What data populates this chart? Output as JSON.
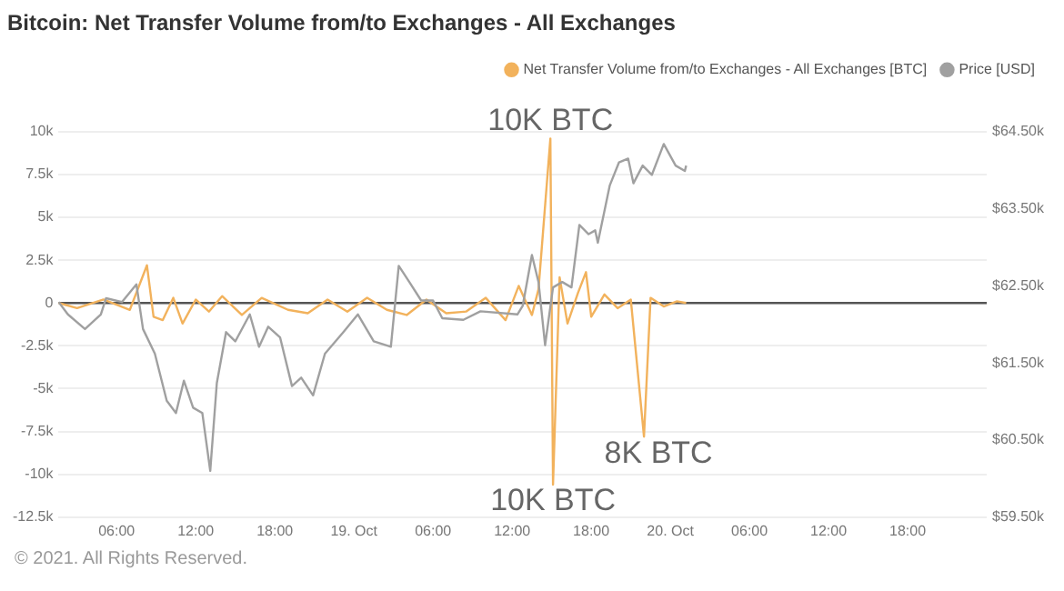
{
  "chart_data": {
    "type": "line",
    "title": "Bitcoin: Net Transfer Volume from/to Exchanges - All Exchanges",
    "xlim": [
      "--10-18T01:36",
      "--10-21T00:00"
    ],
    "xticks": [
      {
        "value": "--10-18T06:00",
        "label": "06:00"
      },
      {
        "value": "--10-18T12:00",
        "label": "12:00"
      },
      {
        "value": "--10-18T18:00",
        "label": "18:00"
      },
      {
        "value": "--10-19",
        "label": "19. Oct"
      },
      {
        "value": "--10-19T06:00",
        "label": "06:00"
      },
      {
        "value": "--10-19T12:00",
        "label": "12:00"
      },
      {
        "value": "--10-19T18:00",
        "label": "18:00"
      },
      {
        "value": "--10-20",
        "label": "20. Oct"
      },
      {
        "value": "--10-20T06:00",
        "label": "06:00"
      },
      {
        "value": "--10-20T12:00",
        "label": "12:00"
      },
      {
        "value": "--10-20T18:00",
        "label": "18:00"
      }
    ],
    "ylim": [
      -12500,
      10000
    ],
    "yticks": [
      {
        "value": 10000,
        "label": "10k"
      },
      {
        "value": 7500,
        "label": "7.5k"
      },
      {
        "value": 5000,
        "label": "5k"
      },
      {
        "value": 2500,
        "label": "2.5k"
      },
      {
        "value": 0,
        "label": "0"
      },
      {
        "value": -2500,
        "label": "-2.5k"
      },
      {
        "value": -5000,
        "label": "-5k"
      },
      {
        "value": -7500,
        "label": "-7.5k"
      },
      {
        "value": -10000,
        "label": "-10k"
      },
      {
        "value": -12500,
        "label": "-12.5k"
      }
    ],
    "y2lim": [
      59500,
      64500
    ],
    "y2ticks": [
      {
        "value": 64500,
        "label": "$64.50k"
      },
      {
        "value": 63500,
        "label": "$63.50k"
      },
      {
        "value": 62500,
        "label": "$62.50k"
      },
      {
        "value": 61500,
        "label": "$61.50k"
      },
      {
        "value": 60500,
        "label": "$60.50k"
      },
      {
        "value": 59500,
        "label": "$59.50k"
      }
    ],
    "grid": "y",
    "legend": "top right",
    "marker": "none",
    "line_style": "solid",
    "ref_lines": [
      {
        "axis": "y",
        "value": 0,
        "color": "#555555"
      }
    ],
    "series": [
      {
        "name": "Price [USD]",
        "color": "#a0a0a0",
        "axis": "y2",
        "x": [
          "--10-18T01:36",
          "--10-18T02:18",
          "--10-18T03:36",
          "--10-18T04:48",
          "--10-18T05:12",
          "--10-18T06:24",
          "--10-18T07:30",
          "--10-18T08:00",
          "--10-18T08:54",
          "--10-18T09:48",
          "--10-18T10:30",
          "--10-18T11:06",
          "--10-18T11:48",
          "--10-18T12:30",
          "--10-18T13:06",
          "--10-18T13:36",
          "--10-18T14:18",
          "--10-18T15:00",
          "--10-18T16:06",
          "--10-18T16:48",
          "--10-18T17:30",
          "--10-18T18:24",
          "--10-18T19:18",
          "--10-18T20:00",
          "--10-18T20:54",
          "--10-18T21:48",
          "--10-18T23:12",
          "--10-19T00:18",
          "--10-19T01:30",
          "--10-19T02:48",
          "--10-19T03:24",
          "--10-19T04:12",
          "--10-19T05:06",
          "--10-19T06:00",
          "--10-19T06:42",
          "--10-19T08:18",
          "--10-19T09:36",
          "--10-19T12:24",
          "--10-19T12:48",
          "--10-19T13:30",
          "--10-19T14:00",
          "--10-19T14:30",
          "--10-19T15:06",
          "--10-19T15:48",
          "--10-19T16:30",
          "--10-19T17:06",
          "--10-19T17:48",
          "--10-19T18:18",
          "--10-19T18:30",
          "--10-19T19:24",
          "--10-19T20:06",
          "--10-19T20:48",
          "--10-19T21:12",
          "--10-19T21:54",
          "--10-19T22:36",
          "--10-19T23:30",
          "--10-20T00:24",
          "--10-20T01:06",
          "--10-20T01:12"
        ],
        "values": [
          62290,
          62130,
          61940,
          62130,
          62340,
          62290,
          62520,
          61940,
          61620,
          61010,
          60850,
          61270,
          60920,
          60850,
          60100,
          61240,
          61900,
          61780,
          62130,
          61710,
          61970,
          61830,
          61200,
          61310,
          61080,
          61620,
          61900,
          62130,
          61780,
          61710,
          62760,
          62550,
          62310,
          62310,
          62080,
          62060,
          62170,
          62130,
          62240,
          62900,
          62550,
          61730,
          62480,
          62550,
          62480,
          63290,
          63170,
          63220,
          63060,
          63800,
          64100,
          64150,
          63830,
          64060,
          63940,
          64340,
          64060,
          63990,
          64060
        ]
      },
      {
        "name": "Net Transfer Volume from/to Exchanges - All Exchanges [BTC]",
        "color": "#f2b25c",
        "x": [
          "--10-18T01:36",
          "--10-18T03:00",
          "--10-18T05:00",
          "--10-18T07:00",
          "--10-18T08:18",
          "--10-18T08:48",
          "--10-18T09:30",
          "--10-18T10:18",
          "--10-18T11:00",
          "--10-18T12:00",
          "--10-18T13:00",
          "--10-18T14:00",
          "--10-18T15:30",
          "--10-18T17:00",
          "--10-18T19:00",
          "--10-18T20:30",
          "--10-18T22:00",
          "--10-18T23:30",
          "--10-19T01:00",
          "--10-19T02:30",
          "--10-19T04:00",
          "--10-19T05:30",
          "--10-19T07:00",
          "--10-19T08:30",
          "--10-19T10:00",
          "--10-19T11:30",
          "--10-19T12:30",
          "--10-19T13:30",
          "--10-19T14:00",
          "--10-19T14:54",
          "--10-19T15:06",
          "--10-19T15:36",
          "--10-19T16:12",
          "--10-19T17:00",
          "--10-19T17:36",
          "--10-19T18:00",
          "--10-19T19:00",
          "--10-19T20:00",
          "--10-19T21:00",
          "--10-19T22:00",
          "--10-19T22:30",
          "--10-19T23:30",
          "--10-20T00:30",
          "--10-20T01:12"
        ],
        "values": [
          0,
          -300,
          200,
          -400,
          2200,
          -800,
          -1000,
          300,
          -1200,
          200,
          -500,
          400,
          -700,
          300,
          -400,
          -600,
          200,
          -500,
          300,
          -400,
          -700,
          200,
          -600,
          -500,
          300,
          -1000,
          1000,
          -700,
          800,
          9600,
          -10600,
          1500,
          -1200,
          600,
          1800,
          -800,
          500,
          -300,
          200,
          -7800,
          300,
          -200,
          100,
          0
        ]
      }
    ],
    "annotations": [
      {
        "text": "10K BTC",
        "x": "--10-19T14:54",
        "y": 9600
      },
      {
        "text": "10K BTC",
        "x": "--10-19T15:06",
        "y": -10600
      },
      {
        "text": "8K BTC",
        "x": "--10-19T22:00",
        "y": -7800
      },
      "© 2021. All Rights Reserved."
    ]
  }
}
